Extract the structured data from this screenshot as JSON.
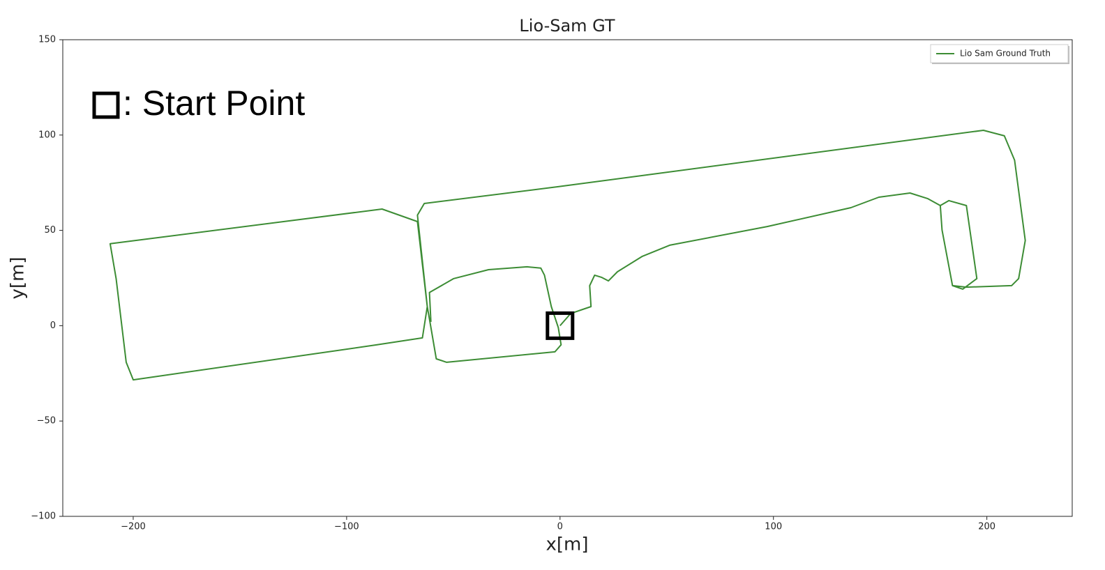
{
  "chart_data": {
    "type": "line",
    "title": "Lio-Sam GT",
    "xlabel": "x[m]",
    "ylabel": "y[m]",
    "annotation": ": Start Point",
    "xlim": [
      -233,
      240
    ],
    "ylim": [
      -100,
      150
    ],
    "xticks": [
      {
        "value": -200,
        "label": "−200"
      },
      {
        "value": -100,
        "label": "−100"
      },
      0,
      100,
      200
    ],
    "yticks": [
      {
        "value": -100,
        "label": "−100"
      },
      {
        "value": -50,
        "label": "−50"
      },
      0,
      50,
      100,
      150
    ],
    "grid": false,
    "legend": "upper right",
    "series": [
      {
        "name": "Lio Sam Ground Truth",
        "color": "#3c8c34",
        "x": [
          0,
          5,
          11.6,
          14.5,
          13.9,
          16.2,
          19.4,
          22.7,
          26.9,
          38.4,
          51.4,
          97.1,
          136.3,
          149.4,
          164,
          172.2,
          178.2,
          179,
          183.9,
          188.7,
          195.3,
          190.4,
          182.2,
          178.2,
          179,
          183.9,
          190.4,
          211.6,
          214.9,
          218,
          213,
          208.2,
          198.4,
          -0.8,
          -63.6,
          -66.8,
          -62.2,
          -64.5,
          -85.7,
          -200,
          -203.3,
          -208,
          -210.8,
          -83.4,
          -66.8,
          -62.2,
          -60.5,
          -58,
          -53.1,
          -2.4,
          0.5,
          -0.8,
          -4.1,
          -7.3,
          -9,
          -15.5,
          -33.5,
          -49.8,
          -61.2,
          -60.5
        ],
        "values": [
          0,
          6.4,
          8.9,
          10,
          21,
          26.5,
          25.4,
          23.5,
          28.3,
          36.3,
          42.2,
          52,
          61.9,
          67.4,
          69.6,
          66.7,
          63,
          50.2,
          21,
          19.2,
          24.7,
          63,
          65.6,
          63,
          50.2,
          21,
          20.2,
          21,
          24.7,
          44.7,
          86.8,
          99.6,
          102.5,
          72.9,
          64.1,
          58,
          10,
          -6.4,
          -10,
          -28.4,
          -19.2,
          24.6,
          43,
          61.2,
          54.6,
          10,
          -0.9,
          -17.4,
          -19.2,
          -13.7,
          -10,
          -1,
          10,
          26.5,
          30.2,
          30.9,
          29.4,
          24.7,
          17.4,
          2
        ]
      }
    ]
  }
}
